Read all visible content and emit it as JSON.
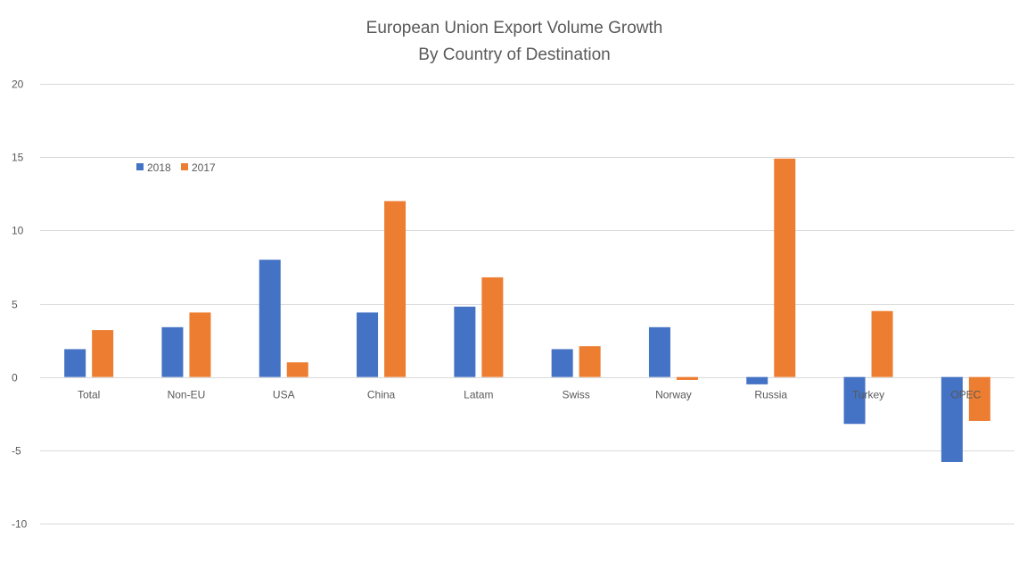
{
  "chart_data": {
    "type": "bar",
    "title": "European Union Export Volume Growth",
    "subtitle": "By Country of Destination",
    "xlabel": "",
    "ylabel": "",
    "ylim": [
      -10,
      20
    ],
    "yticks": [
      20,
      15,
      10,
      5,
      0,
      -5,
      -10
    ],
    "grid": true,
    "legend_position": "top-left",
    "categories": [
      "Total",
      "Non-EU",
      "USA",
      "China",
      "Latam",
      "Swiss",
      "Norway",
      "Russia",
      "Turkey",
      "OPEC"
    ],
    "series": [
      {
        "name": "2018",
        "color": "#4472C4",
        "values": [
          1.9,
          3.4,
          8.0,
          4.4,
          4.8,
          1.9,
          3.4,
          -0.5,
          -3.2,
          -5.8
        ]
      },
      {
        "name": "2017",
        "color": "#ED7D31",
        "values": [
          3.2,
          4.4,
          1.0,
          12.0,
          6.8,
          2.1,
          -0.2,
          14.9,
          4.5,
          -3.0
        ]
      }
    ]
  }
}
